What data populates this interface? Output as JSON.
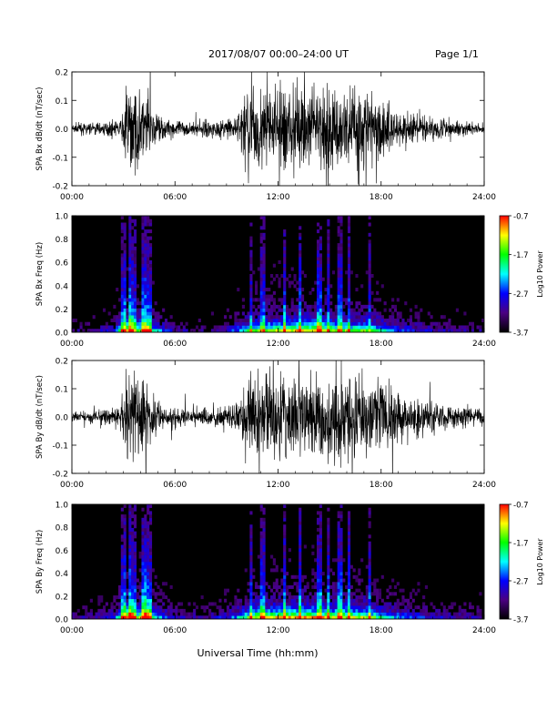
{
  "header": {
    "title": "2017/08/07  00:00–24:00 UT",
    "page": "Page 1/1"
  },
  "xlabel": "Universal Time (hh:mm)",
  "colors": {
    "trace": "#000000",
    "spectrogram_background": "#000000",
    "colormap": [
      "#000000",
      "#4b0082",
      "#0000ff",
      "#00ffff",
      "#00ff00",
      "#ffff00",
      "#ff0000"
    ]
  },
  "chart_data": [
    {
      "type": "line",
      "ylabel": "SPA Bx dB/dt (nT/sec)",
      "xlim": [
        "00:00",
        "24:00"
      ],
      "ylim": [
        -0.2,
        0.2
      ],
      "x_ticks": [
        "00:00",
        "06:00",
        "12:00",
        "18:00",
        "24:00"
      ],
      "y_ticks": [
        "-0.2",
        "-0.1",
        "0.0",
        "0.1",
        "0.2"
      ],
      "envelope": {
        "hours": [
          0,
          1,
          2,
          2.9,
          3.1,
          4,
          4.8,
          5.3,
          6,
          7,
          8,
          9,
          9.6,
          10,
          11,
          12,
          13,
          14,
          15,
          16,
          17,
          18,
          18.5,
          19,
          20,
          21,
          22,
          23,
          24
        ],
        "amplitude": [
          0.03,
          0.035,
          0.04,
          0.05,
          0.25,
          0.25,
          0.15,
          0.06,
          0.05,
          0.04,
          0.05,
          0.06,
          0.07,
          0.25,
          0.25,
          0.25,
          0.25,
          0.25,
          0.25,
          0.25,
          0.25,
          0.25,
          0.15,
          0.12,
          0.09,
          0.07,
          0.05,
          0.04,
          0.03
        ]
      }
    },
    {
      "type": "heatmap",
      "ylabel": "SPA Bx Freq (Hz)",
      "xlim": [
        "00:00",
        "24:00"
      ],
      "ylim": [
        0,
        1.0
      ],
      "x_ticks": [
        "00:00",
        "06:00",
        "12:00",
        "18:00",
        "24:00"
      ],
      "y_ticks": [
        "0.0",
        "0.2",
        "0.4",
        "0.6",
        "0.8",
        "1.0"
      ],
      "colorbar": {
        "label": "Log10 Power",
        "range": [
          -3.7,
          -0.7
        ],
        "ticks": [
          "-0.7",
          "-1.7",
          "-2.7",
          "-3.7"
        ]
      },
      "activity": {
        "hours": [
          0,
          1,
          2.5,
          3,
          3.3,
          3.7,
          4.3,
          5,
          6,
          8,
          9.5,
          10.5,
          12,
          13,
          14,
          15,
          16,
          17,
          18,
          19,
          20,
          22,
          24
        ],
        "level": [
          0.15,
          0.15,
          0.3,
          0.8,
          1.0,
          0.7,
          0.9,
          0.45,
          0.2,
          0.15,
          0.35,
          0.7,
          0.8,
          0.85,
          0.9,
          0.8,
          0.75,
          0.7,
          0.55,
          0.4,
          0.3,
          0.2,
          0.15
        ]
      }
    },
    {
      "type": "line",
      "ylabel": "SPA By dB/dt (nT/sec)",
      "xlim": [
        "00:00",
        "24:00"
      ],
      "ylim": [
        -0.2,
        0.2
      ],
      "x_ticks": [
        "00:00",
        "06:00",
        "12:00",
        "18:00",
        "24:00"
      ],
      "y_ticks": [
        "-0.2",
        "-0.1",
        "0.0",
        "0.1",
        "0.2"
      ],
      "envelope": {
        "hours": [
          0,
          1,
          2,
          2.8,
          3.1,
          4,
          4.8,
          5.4,
          6,
          7,
          8,
          9,
          9.8,
          10.2,
          11,
          12,
          13,
          14,
          15,
          16,
          17,
          18,
          19,
          20,
          21,
          22,
          23,
          24
        ],
        "amplitude": [
          0.03,
          0.035,
          0.045,
          0.06,
          0.25,
          0.25,
          0.15,
          0.07,
          0.06,
          0.05,
          0.06,
          0.07,
          0.09,
          0.25,
          0.25,
          0.25,
          0.25,
          0.25,
          0.25,
          0.25,
          0.25,
          0.22,
          0.17,
          0.13,
          0.1,
          0.08,
          0.06,
          0.05
        ]
      }
    },
    {
      "type": "heatmap",
      "ylabel": "SPA By Freq (Hz)",
      "xlim": [
        "00:00",
        "24:00"
      ],
      "ylim": [
        0,
        1.0
      ],
      "x_ticks": [
        "00:00",
        "06:00",
        "12:00",
        "18:00",
        "24:00"
      ],
      "y_ticks": [
        "0.0",
        "0.2",
        "0.4",
        "0.6",
        "0.8",
        "1.0"
      ],
      "colorbar": {
        "label": "Log10 Power",
        "range": [
          -3.7,
          -0.7
        ],
        "ticks": [
          "-0.7",
          "-1.7",
          "-2.7",
          "-3.7"
        ]
      },
      "activity": {
        "hours": [
          0,
          1,
          2.5,
          3,
          3.3,
          3.7,
          4.3,
          5,
          6,
          8,
          9.5,
          10.5,
          12,
          13,
          14,
          15,
          16,
          17,
          18,
          19,
          20,
          22,
          24
        ],
        "level": [
          0.2,
          0.2,
          0.35,
          0.85,
          1.0,
          0.75,
          0.95,
          0.5,
          0.25,
          0.2,
          0.4,
          0.8,
          0.9,
          0.9,
          0.9,
          0.85,
          0.85,
          0.8,
          0.6,
          0.45,
          0.35,
          0.25,
          0.2
        ]
      }
    }
  ]
}
